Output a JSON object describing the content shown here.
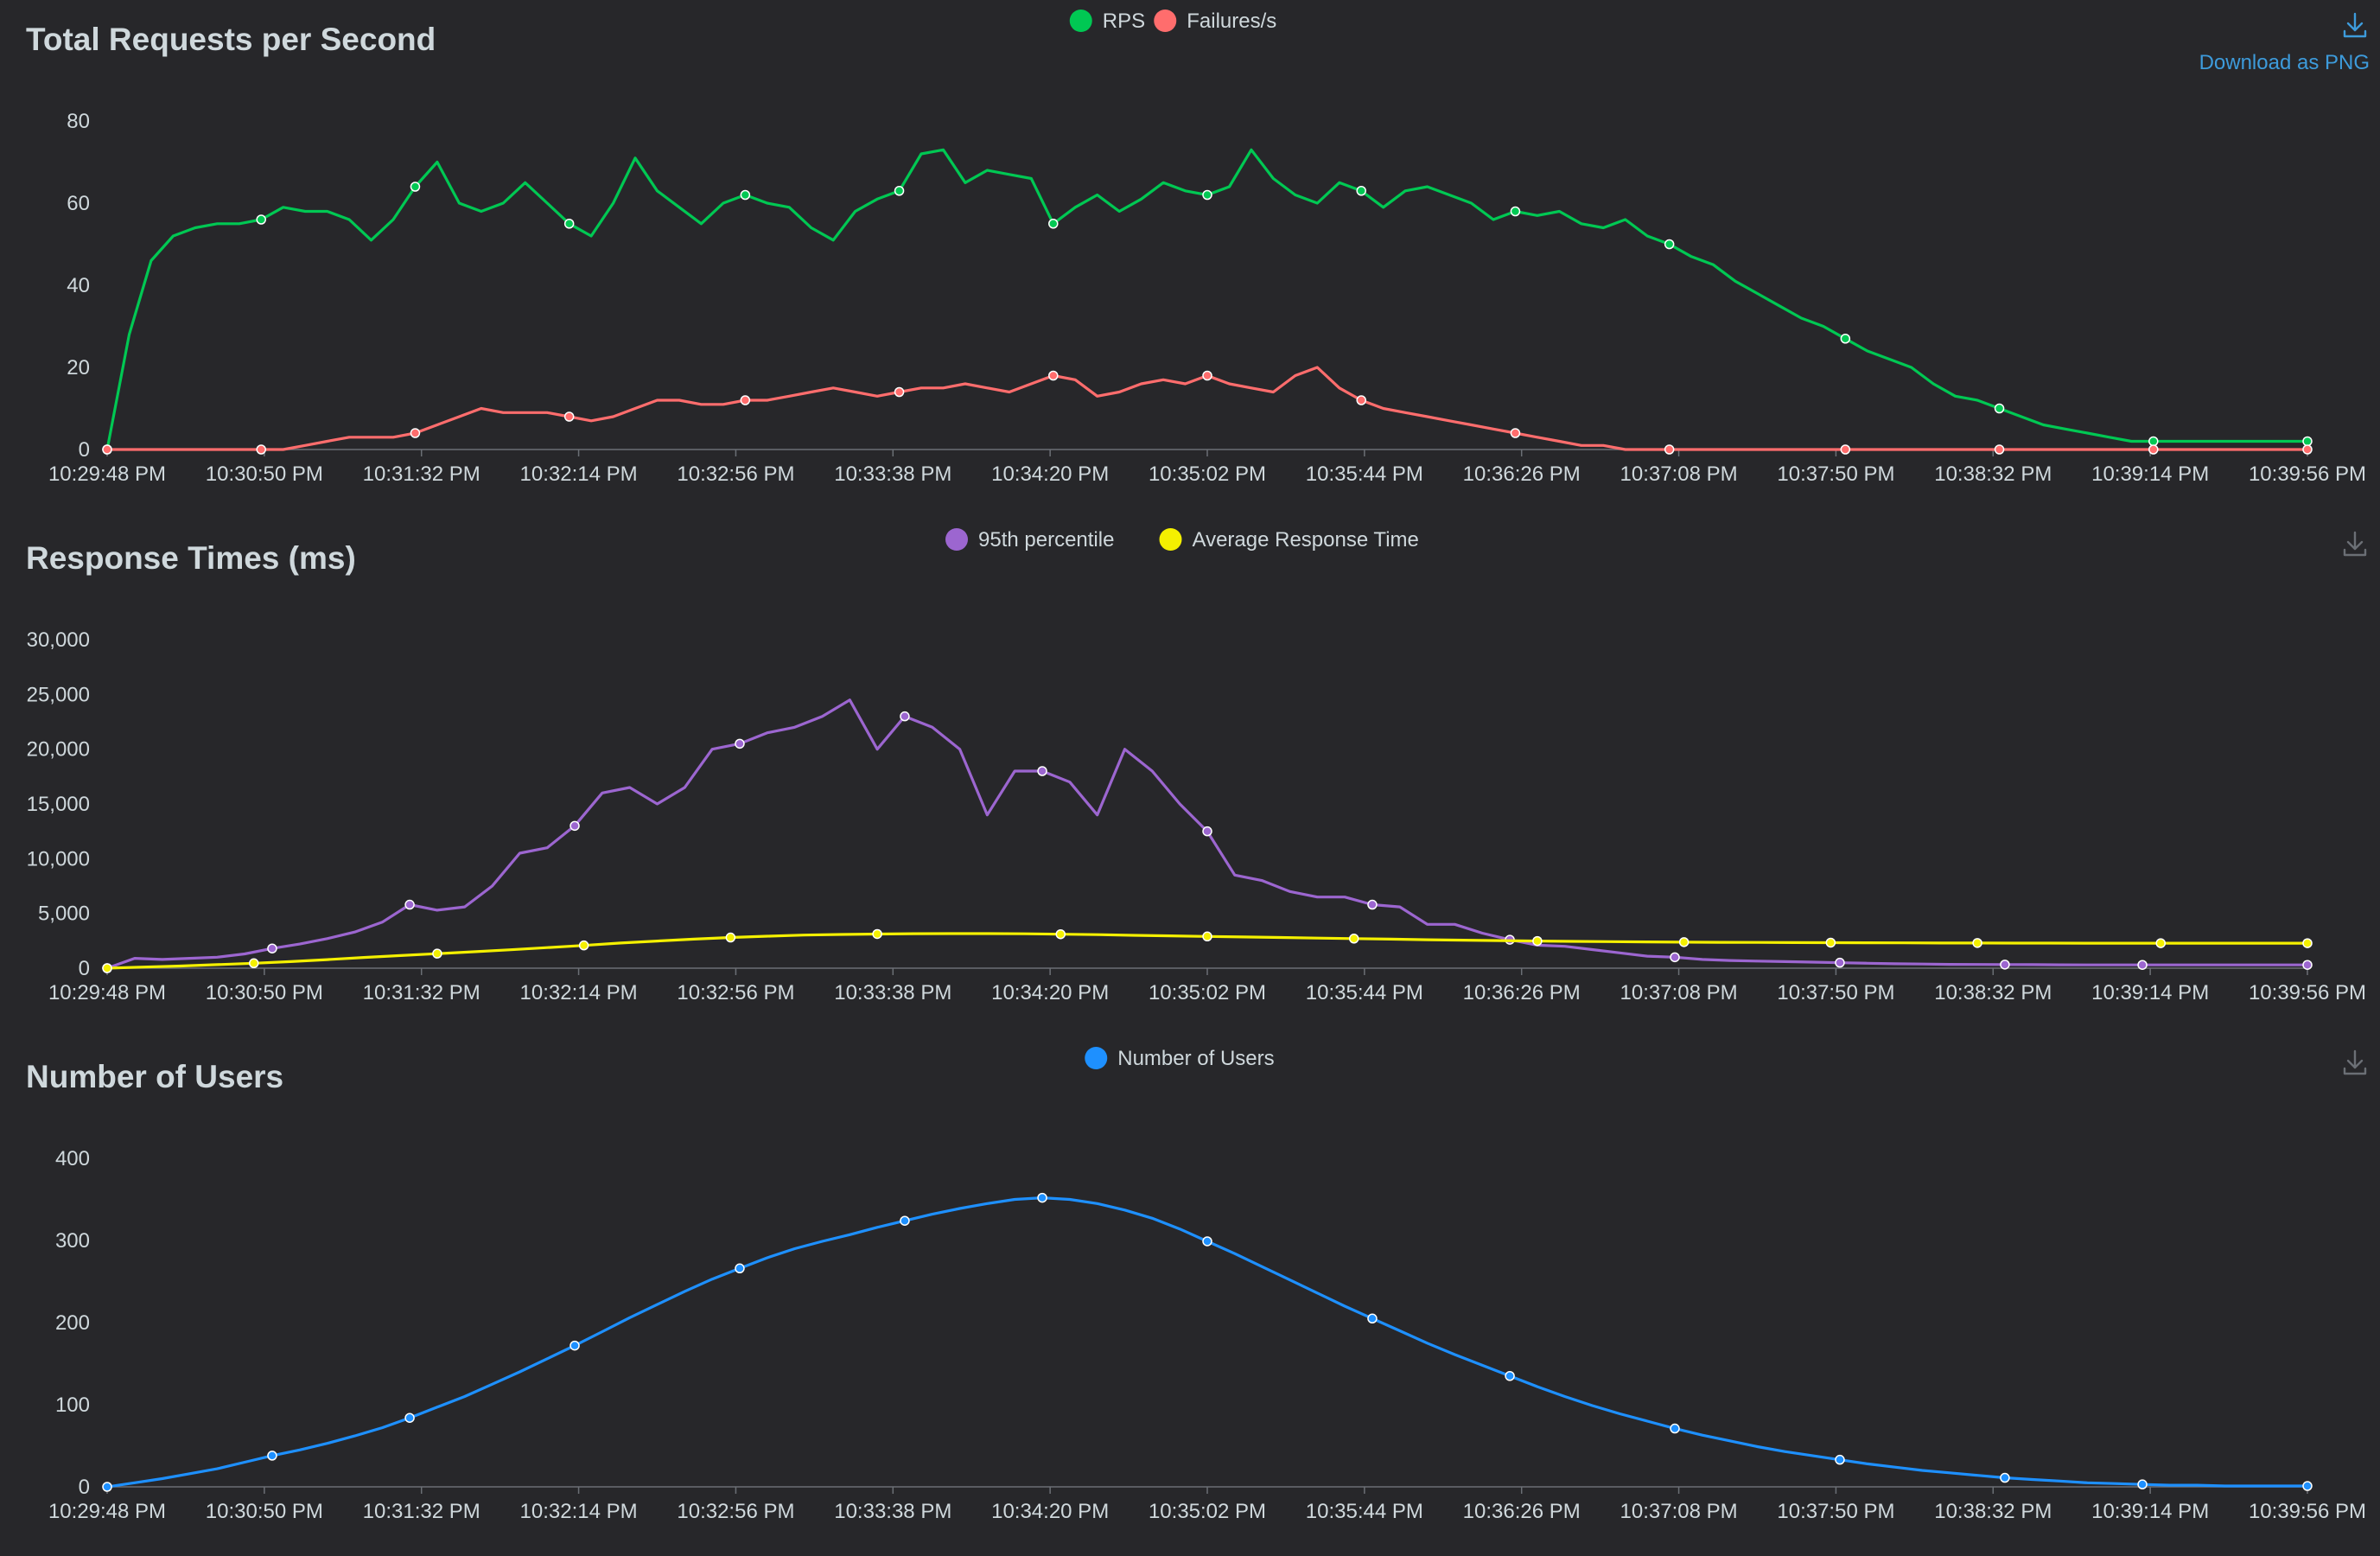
{
  "theme": {
    "background": "#27272a",
    "text_color": "#cfd8dc",
    "axis_color": "#6b6f75",
    "download_active_color": "#3d9bdb",
    "download_inactive_color": "#6b6f75"
  },
  "download": {
    "label": "Download as PNG",
    "icon": "download-icon"
  },
  "x_tick_labels": [
    "10:29:48 PM",
    "10:30:50 PM",
    "10:31:32 PM",
    "10:32:14 PM",
    "10:32:56 PM",
    "10:33:38 PM",
    "10:34:20 PM",
    "10:35:02 PM",
    "10:35:44 PM",
    "10:36:26 PM",
    "10:37:08 PM",
    "10:37:50 PM",
    "10:38:32 PM",
    "10:39:14 PM",
    "10:39:56 PM"
  ],
  "chart_data": [
    {
      "id": "rps",
      "type": "line",
      "title": "Total Requests per Second",
      "xlabel": "",
      "ylabel": "",
      "ylim": [
        0,
        80
      ],
      "yticks": [
        0,
        20,
        40,
        60,
        80
      ],
      "ytick_labels": [
        "0",
        "20",
        "40",
        "60",
        "80"
      ],
      "legend_position": "top-center",
      "grid": false,
      "series": [
        {
          "name": "RPS",
          "color": "#00c853",
          "values": [
            0,
            28,
            46,
            52,
            54,
            55,
            55,
            56,
            59,
            58,
            58,
            56,
            51,
            56,
            64,
            70,
            60,
            58,
            60,
            65,
            60,
            55,
            52,
            60,
            71,
            63,
            59,
            55,
            60,
            62,
            60,
            59,
            54,
            51,
            58,
            61,
            63,
            72,
            73,
            65,
            68,
            67,
            66,
            55,
            59,
            62,
            58,
            61,
            65,
            63,
            62,
            64,
            73,
            66,
            62,
            60,
            65,
            63,
            59,
            63,
            64,
            62,
            60,
            56,
            58,
            57,
            58,
            55,
            54,
            56,
            52,
            50,
            47,
            45,
            41,
            38,
            35,
            32,
            30,
            27,
            24,
            22,
            20,
            16,
            13,
            12,
            10,
            8,
            6,
            5,
            4,
            3,
            2,
            2,
            2,
            2,
            2,
            2,
            2,
            2,
            2
          ]
        },
        {
          "name": "Failures/s",
          "color": "#ff6d6d",
          "values": [
            0,
            0,
            0,
            0,
            0,
            0,
            0,
            0,
            0,
            1,
            2,
            3,
            3,
            3,
            4,
            6,
            8,
            10,
            9,
            9,
            9,
            8,
            7,
            8,
            10,
            12,
            12,
            11,
            11,
            12,
            12,
            13,
            14,
            15,
            14,
            13,
            14,
            15,
            15,
            16,
            15,
            14,
            16,
            18,
            17,
            13,
            14,
            16,
            17,
            16,
            18,
            16,
            15,
            14,
            18,
            20,
            15,
            12,
            10,
            9,
            8,
            7,
            6,
            5,
            4,
            3,
            2,
            1,
            1,
            0,
            0,
            0,
            0,
            0,
            0,
            0,
            0,
            0,
            0,
            0,
            0,
            0,
            0,
            0,
            0,
            0,
            0,
            0,
            0,
            0,
            0,
            0,
            0,
            0,
            0,
            0,
            0,
            0,
            0,
            0,
            0
          ]
        }
      ]
    },
    {
      "id": "response-times",
      "type": "line",
      "title": "Response Times (ms)",
      "xlabel": "",
      "ylabel": "",
      "ylim": [
        0,
        30000
      ],
      "yticks": [
        0,
        5000,
        10000,
        15000,
        20000,
        25000,
        30000
      ],
      "ytick_labels": [
        "0",
        "5,000",
        "10,000",
        "15,000",
        "20,000",
        "25,000",
        "30,000"
      ],
      "legend_position": "top-center",
      "grid": false,
      "series": [
        {
          "name": "95th percentile",
          "color": "#9c66d0",
          "values": [
            0,
            900,
            800,
            900,
            1000,
            1300,
            1800,
            2200,
            2700,
            3300,
            4200,
            5800,
            5300,
            5600,
            7500,
            10500,
            11000,
            13000,
            16000,
            16500,
            15000,
            16500,
            20000,
            20500,
            21500,
            22000,
            23000,
            24500,
            20000,
            23000,
            22000,
            20000,
            14000,
            18000,
            18000,
            17000,
            14000,
            20000,
            18000,
            15000,
            12500,
            8500,
            8000,
            7000,
            6500,
            6500,
            5800,
            5600,
            4000,
            4000,
            3200,
            2600,
            2100,
            2000,
            1700,
            1400,
            1100,
            1000,
            800,
            700,
            650,
            600,
            550,
            500,
            450,
            400,
            380,
            350,
            340,
            330,
            320,
            310,
            300,
            300,
            300,
            300,
            300,
            300,
            300,
            300,
            300
          ]
        },
        {
          "name": "Average Response Time",
          "color": "#f4f000",
          "values": [
            0,
            100,
            200,
            320,
            450,
            600,
            780,
            980,
            1150,
            1330,
            1500,
            1680,
            1880,
            2080,
            2300,
            2480,
            2650,
            2800,
            2920,
            3020,
            3080,
            3120,
            3150,
            3160,
            3160,
            3140,
            3100,
            3060,
            3000,
            2950,
            2900,
            2850,
            2800,
            2750,
            2700,
            2650,
            2600,
            2560,
            2520,
            2480,
            2450,
            2420,
            2400,
            2380,
            2360,
            2350,
            2340,
            2330,
            2320,
            2310,
            2300,
            2300,
            2290,
            2290,
            2280,
            2280,
            2280,
            2280,
            2280,
            2280,
            2280
          ]
        }
      ]
    },
    {
      "id": "users",
      "type": "line",
      "title": "Number of Users",
      "xlabel": "",
      "ylabel": "",
      "ylim": [
        0,
        400
      ],
      "yticks": [
        0,
        100,
        200,
        300,
        400
      ],
      "ytick_labels": [
        "0",
        "100",
        "200",
        "300",
        "400"
      ],
      "legend_position": "top-center",
      "grid": false,
      "series": [
        {
          "name": "Number of Users",
          "color": "#1e90ff",
          "values": [
            0,
            5,
            10,
            16,
            22,
            30,
            38,
            45,
            53,
            62,
            72,
            84,
            97,
            110,
            125,
            140,
            156,
            172,
            189,
            206,
            222,
            238,
            253,
            266,
            279,
            290,
            299,
            307,
            316,
            324,
            332,
            339,
            345,
            350,
            352,
            350,
            345,
            337,
            327,
            314,
            299,
            284,
            268,
            252,
            236,
            220,
            205,
            190,
            175,
            161,
            148,
            135,
            122,
            110,
            99,
            89,
            80,
            71,
            63,
            56,
            49,
            43,
            38,
            33,
            28,
            24,
            20,
            17,
            14,
            11,
            9,
            7,
            5,
            4,
            3,
            2,
            2,
            1,
            1,
            1,
            1
          ]
        }
      ]
    }
  ]
}
